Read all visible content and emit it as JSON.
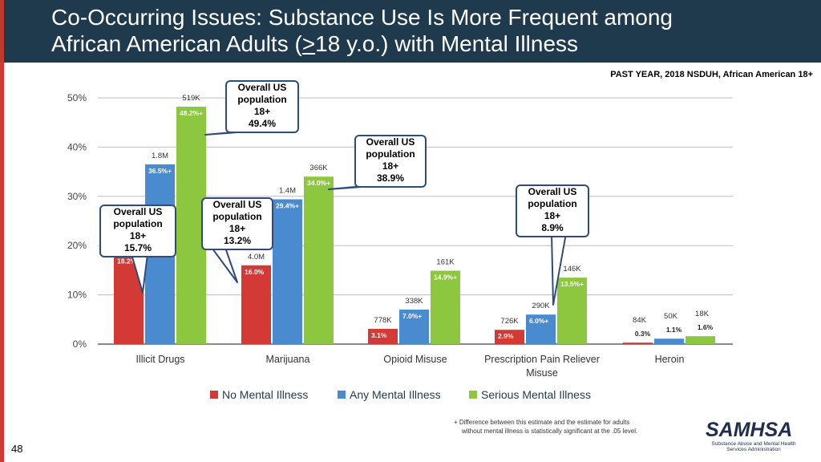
{
  "title": {
    "line1": "Co-Occurring Issues: Substance Use Is More Frequent among",
    "line2_pre": "African American Adults (",
    "line2_ge": ">",
    "line2_post": "18 y.o.) with Mental Illness"
  },
  "subhead": "PAST YEAR, 2018 NSDUH, African American 18+",
  "chart_data": {
    "type": "bar",
    "ylim": [
      0,
      50
    ],
    "yticks": [
      "0%",
      "10%",
      "20%",
      "30%",
      "40%",
      "50%"
    ],
    "categories": [
      "Illicit Drugs",
      "Marijuana",
      "Opioid Misuse",
      "Prescription Pain Reliever Misuse",
      "Heroin"
    ],
    "series": [
      {
        "name": "No Mental Illness",
        "color": "#d43a35",
        "values": [
          18.2,
          16.0,
          3.1,
          2.9,
          0.3
        ],
        "labels": [
          "18.2%",
          "16.0%",
          "3.1%",
          "2.9%",
          "0.3%"
        ],
        "counts": [
          "",
          "4.0M",
          "778K",
          "726K",
          "84K"
        ]
      },
      {
        "name": "Any Mental Illness",
        "color": "#4a8bd0",
        "values": [
          36.5,
          29.4,
          7.0,
          6.0,
          1.1
        ],
        "labels": [
          "36.5%+",
          "29.4%+",
          "7.0%+",
          "6.0%+",
          "1.1%"
        ],
        "counts": [
          "1.8M",
          "1.4M",
          "338K",
          "290K",
          "50K"
        ]
      },
      {
        "name": "Serious Mental Illness",
        "color": "#8dc63f",
        "values": [
          48.2,
          34.0,
          14.9,
          13.5,
          1.6
        ],
        "labels": [
          "48.2%+",
          "34.0%+",
          "14.9%+",
          "13.5%+",
          "1.6%"
        ],
        "counts": [
          "519K",
          "366K",
          "161K",
          "146K",
          "18K"
        ]
      }
    ]
  },
  "callouts": [
    {
      "l1": "Overall US",
      "l2": "population",
      "l3": "18+",
      "l4": "15.7%"
    },
    {
      "l1": "Overall US",
      "l2": "population",
      "l3": "18+",
      "l4": "49.4%"
    },
    {
      "l1": "Overall US",
      "l2": "population",
      "l3": "18+",
      "l4": "13.2%"
    },
    {
      "l1": "Overall US",
      "l2": "population",
      "l3": "18+",
      "l4": "38.9%"
    },
    {
      "l1": "Overall US",
      "l2": "population",
      "l3": "18+",
      "l4": "8.9%"
    }
  ],
  "legend": [
    "No Mental Illness",
    "Any Mental Illness",
    "Serious Mental Illness"
  ],
  "footnote": {
    "line1": "+  Difference between this estimate and the estimate for adults",
    "line2": "without mental illness is statistically significant at the .05 level."
  },
  "logo": {
    "name": "SAMHSA",
    "line1": "Substance Abuse and Mental Health",
    "line2": "Services Administration"
  },
  "page_number": "48"
}
